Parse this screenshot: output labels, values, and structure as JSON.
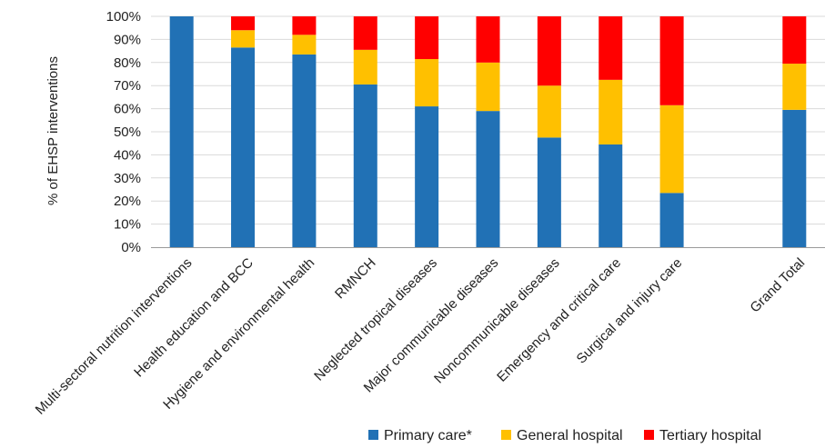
{
  "chart_data": {
    "type": "bar",
    "stacked": true,
    "percent": true,
    "ylabel": "% of EHSP interventions",
    "ylim": [
      0,
      100
    ],
    "yticks": [
      "0%",
      "10%",
      "20%",
      "30%",
      "40%",
      "50%",
      "60%",
      "70%",
      "80%",
      "90%",
      "100%"
    ],
    "grid": true,
    "legend_position": "bottom-right",
    "slot_count": 11,
    "categories": [
      {
        "label": "Multi-sectoral nutrition interventions",
        "slot": 0
      },
      {
        "label": "Health education and BCC",
        "slot": 1
      },
      {
        "label": "Hygiene and environmental health",
        "slot": 2
      },
      {
        "label": "RMNCH",
        "slot": 3
      },
      {
        "label": "Neglected tropical diseases",
        "slot": 4
      },
      {
        "label": "Major communicable diseases",
        "slot": 5
      },
      {
        "label": "Noncommunicable diseases",
        "slot": 6
      },
      {
        "label": "Emergency and critical care",
        "slot": 7
      },
      {
        "label": "Surgical and injury care",
        "slot": 8
      },
      {
        "label": "Grand Total",
        "slot": 10
      }
    ],
    "series": [
      {
        "name": "Primary care*",
        "color": "#2171b5",
        "values": [
          100,
          86.5,
          83.5,
          70.5,
          61,
          59,
          47.5,
          44.5,
          23.5,
          59.5
        ]
      },
      {
        "name": "General hospital",
        "color": "#ffc000",
        "values": [
          0,
          7.5,
          8.5,
          15,
          20.5,
          21,
          22.5,
          28,
          38,
          20
        ]
      },
      {
        "name": "Tertiary hospital",
        "color": "#ff0000",
        "values": [
          0,
          6,
          8,
          14.5,
          18.5,
          20,
          30,
          27.5,
          38.5,
          20.5
        ]
      }
    ]
  }
}
